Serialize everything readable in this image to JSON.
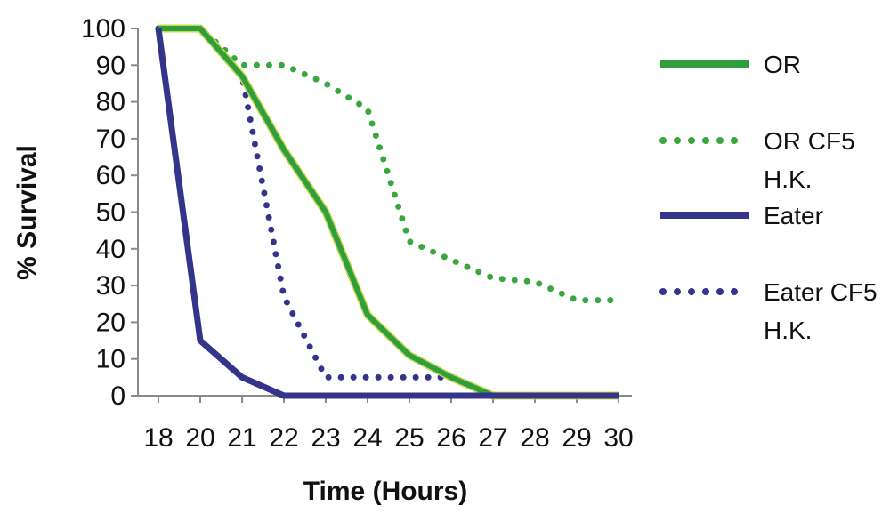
{
  "chart_data": {
    "type": "line",
    "title": "",
    "xlabel": "Time (Hours)",
    "ylabel": "% Survival",
    "categories": [
      "18",
      "20",
      "21",
      "22",
      "23",
      "24",
      "25",
      "26",
      "27",
      "28",
      "29",
      "30"
    ],
    "ylim": [
      0,
      100
    ],
    "yticks": [
      "0",
      "10",
      "20",
      "30",
      "40",
      "50",
      "60",
      "70",
      "80",
      "90",
      "100"
    ],
    "grid": false,
    "legend_position": "right",
    "series": [
      {
        "name": "OR",
        "values": [
          100,
          100,
          87,
          67,
          50,
          22,
          11,
          5,
          0,
          0,
          0,
          0
        ],
        "color": "#2e9e3e",
        "style": "solid"
      },
      {
        "name": "OR CF5 H.K.",
        "values": [
          100,
          100,
          90,
          90,
          85,
          78,
          42,
          37,
          32,
          31,
          26,
          26
        ],
        "color": "#3aa63f",
        "style": "dotted"
      },
      {
        "name": "Eater",
        "values": [
          100,
          15,
          5,
          0,
          0,
          0,
          0,
          0,
          0,
          0,
          0,
          0
        ],
        "color": "#34348a",
        "style": "solid"
      },
      {
        "name": "Eater CF5 H.K.",
        "values": [
          100,
          100,
          87,
          27,
          5,
          5,
          5,
          5,
          0,
          0,
          0,
          0
        ],
        "color": "#34348a",
        "style": "dotted"
      }
    ],
    "legend_lines": [
      [
        "OR"
      ],
      [
        "OR CF5",
        "H.K."
      ],
      [
        "Eater"
      ],
      [
        "Eater CF5",
        "H.K."
      ]
    ]
  }
}
